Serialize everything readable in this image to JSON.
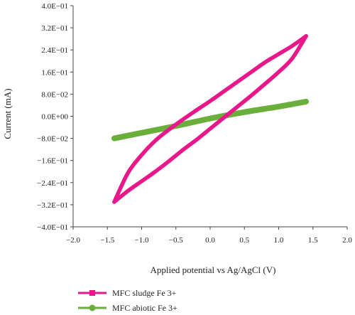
{
  "chart_data": {
    "type": "line",
    "title": "",
    "xlabel": "Applied potential vs Ag/AgCl (V)",
    "ylabel": "Current (mA)",
    "xlim": [
      -2.0,
      2.0
    ],
    "ylim": [
      -0.4,
      0.4
    ],
    "x_ticks": [
      -2.0,
      -1.5,
      -1.0,
      -0.5,
      0.0,
      0.5,
      1.0,
      1.5,
      2.0
    ],
    "x_tick_labels": [
      "−2.0",
      "−1.5",
      "−1.0",
      "−0.5",
      "0.0",
      "0.5",
      "1.0",
      "1.5",
      "2.0"
    ],
    "y_ticks": [
      0.4,
      0.32,
      0.24,
      0.16,
      0.08,
      0.0,
      -0.08,
      -0.16,
      -0.24,
      -0.32,
      -0.4
    ],
    "y_tick_labels": [
      "4.0E−01",
      "3.2E−01",
      "2.4E−01",
      "1.6E−01",
      "8.0E−02",
      "0.0E+00",
      "−8.0E−02",
      "−1.6E−01",
      "−2.4E−01",
      "−3.2E−01",
      "−4.0E−01"
    ],
    "grid": false,
    "legend_position": "bottom-left",
    "series": [
      {
        "name": "MFC sludge Fe 3+",
        "color": "#e8178a",
        "marker": "square",
        "upper_branch": {
          "x": [
            -1.4,
            -1.2,
            -1.0,
            -0.8,
            -0.6,
            -0.4,
            -0.2,
            0.0,
            0.2,
            0.4,
            0.6,
            0.8,
            1.0,
            1.2,
            1.4
          ],
          "y": [
            -0.31,
            -0.205,
            -0.14,
            -0.088,
            -0.048,
            -0.012,
            0.022,
            0.055,
            0.09,
            0.125,
            0.16,
            0.195,
            0.225,
            0.255,
            0.29
          ]
        },
        "lower_branch": {
          "x": [
            -1.4,
            -1.2,
            -1.0,
            -0.8,
            -0.6,
            -0.4,
            -0.2,
            0.0,
            0.2,
            0.4,
            0.6,
            0.8,
            1.0,
            1.2,
            1.4
          ],
          "y": [
            -0.31,
            -0.27,
            -0.235,
            -0.2,
            -0.162,
            -0.122,
            -0.085,
            -0.045,
            -0.005,
            0.035,
            0.075,
            0.117,
            0.16,
            0.21,
            0.29
          ]
        }
      },
      {
        "name": "MFC abiotic Fe 3+",
        "color": "#6aae3c",
        "marker": "circle",
        "x": [
          -1.4,
          -1.0,
          -0.5,
          0.0,
          0.5,
          1.0,
          1.4
        ],
        "y": [
          -0.08,
          -0.06,
          -0.035,
          -0.008,
          0.015,
          0.035,
          0.053
        ]
      }
    ]
  }
}
